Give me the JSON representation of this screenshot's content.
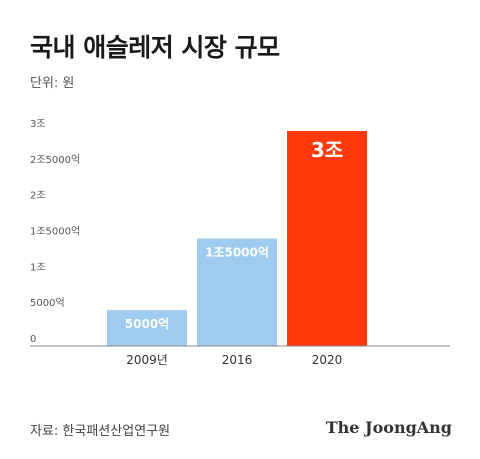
{
  "chart_data": {
    "type": "bar",
    "title": "국내 애슬레저 시장 규모",
    "unit": "단위: 원",
    "categories": [
      "2009년",
      "2016",
      "2020"
    ],
    "values": [
      5000,
      15000,
      30000
    ],
    "value_labels": [
      "5000억",
      "1조5000억",
      "3조"
    ],
    "yticks": [
      {
        "value": 0,
        "label": "0"
      },
      {
        "value": 5000,
        "label": "5000억"
      },
      {
        "value": 10000,
        "label": "1조"
      },
      {
        "value": 15000,
        "label": "1조5000억"
      },
      {
        "value": 20000,
        "label": "2조"
      },
      {
        "value": 25000,
        "label": "2조5000억"
      },
      {
        "value": 30000,
        "label": "3조"
      }
    ],
    "ylim": [
      0,
      30000
    ],
    "grid": false,
    "colors": [
      "#9ecbef",
      "#9ecbef",
      "#ff3a0a"
    ]
  },
  "footer": {
    "source": "자료: 한국패션산업연구원",
    "brand": "The JoongAng"
  }
}
